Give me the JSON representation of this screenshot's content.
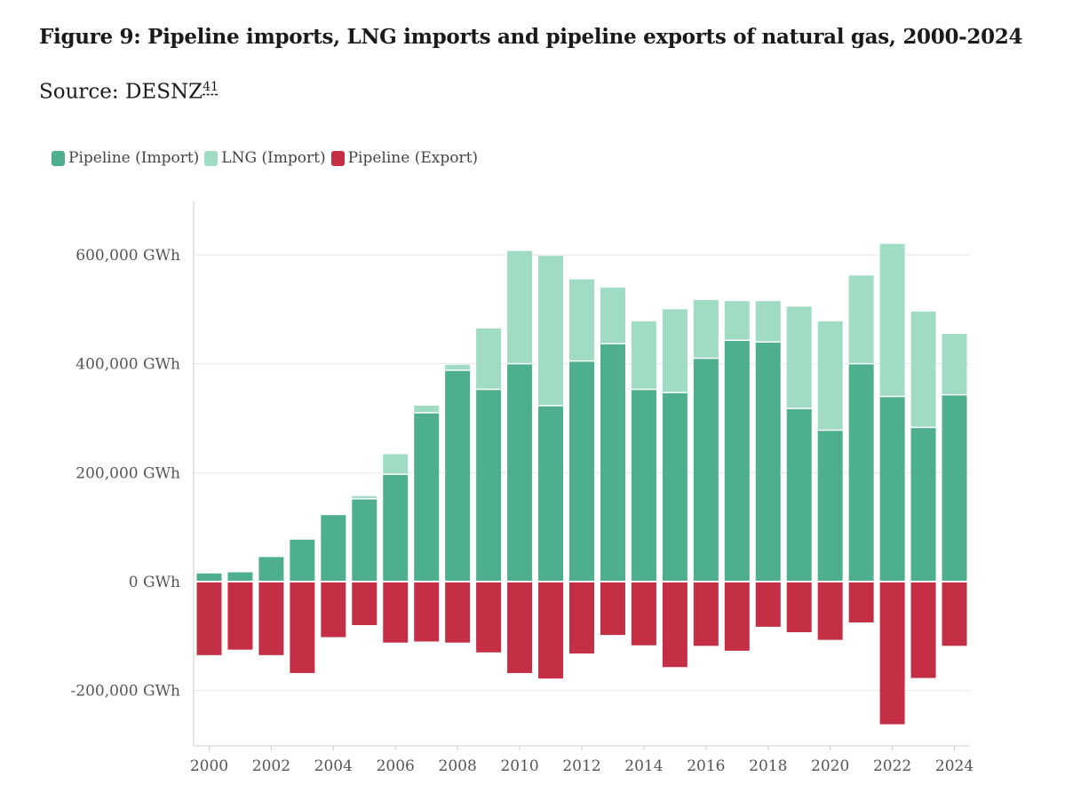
{
  "figure": {
    "title": "Figure 9: Pipeline imports, LNG imports and pipeline exports of natural gas, 2000-2024",
    "source_label": "Source: DESNZ",
    "source_footnote": "41"
  },
  "colors": {
    "pipeline_import": "#4daf8c",
    "lng_import": "#9fdcc3",
    "pipeline_export": "#c42f45",
    "grid": "#e6e6e6",
    "axis": "#cccccc"
  },
  "chart_data": {
    "type": "bar",
    "stacked": true,
    "title": "Figure 9: Pipeline imports, LNG imports and pipeline exports of natural gas, 2000-2024",
    "xlabel": "",
    "ylabel": "",
    "ylim": [
      -300000,
      700000
    ],
    "unit": "GWh",
    "legend_position": "top-left",
    "grid": true,
    "categories": [
      "2000",
      "2001",
      "2002",
      "2003",
      "2004",
      "2005",
      "2006",
      "2007",
      "2008",
      "2009",
      "2010",
      "2011",
      "2012",
      "2013",
      "2014",
      "2015",
      "2016",
      "2017",
      "2018",
      "2019",
      "2020",
      "2021",
      "2022",
      "2023",
      "2024"
    ],
    "x_tick_labels": [
      "2000",
      "2002",
      "2004",
      "2006",
      "2008",
      "2010",
      "2012",
      "2014",
      "2016",
      "2018",
      "2020",
      "2022",
      "2024"
    ],
    "y_tick_values": [
      -200000,
      0,
      200000,
      400000,
      600000
    ],
    "y_tick_labels": [
      "-200,000 GWh",
      "0 GWh",
      "200,000 GWh",
      "400,000 GWh",
      "600,000 GWh"
    ],
    "series": [
      {
        "name": "Pipeline (Import)",
        "color": "#4daf8c",
        "values": [
          15000,
          17000,
          45000,
          77000,
          122000,
          152000,
          197000,
          310000,
          388000,
          353000,
          400000,
          323000,
          405000,
          437000,
          353000,
          347000,
          410000,
          443000,
          440000,
          318000,
          278000,
          400000,
          340000,
          283000,
          343000
        ]
      },
      {
        "name": "LNG (Import)",
        "color": "#9fdcc3",
        "values": [
          0,
          0,
          0,
          0,
          0,
          5000,
          37000,
          13000,
          10000,
          112000,
          207000,
          275000,
          150000,
          103000,
          125000,
          153000,
          107000,
          72000,
          75000,
          187000,
          200000,
          162000,
          280000,
          213000,
          112000
        ]
      },
      {
        "name": "Pipeline (Export)",
        "color": "#c42f45",
        "values": [
          -135000,
          -125000,
          -135000,
          -168000,
          -102000,
          -80000,
          -112000,
          -110000,
          -112000,
          -130000,
          -168000,
          -178000,
          -132000,
          -98000,
          -117000,
          -157000,
          -118000,
          -127000,
          -83000,
          -93000,
          -107000,
          -75000,
          -262000,
          -177000,
          -118000
        ]
      }
    ]
  }
}
